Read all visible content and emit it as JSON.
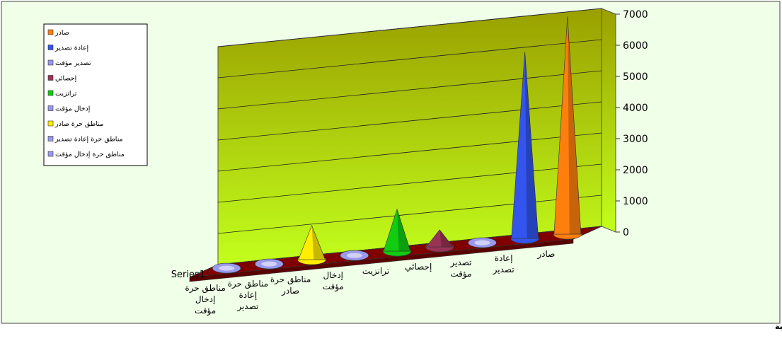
{
  "chart_data": {
    "type": "bar",
    "bar_shape": "cone",
    "three_d": true,
    "categories": [
      "صادر",
      "إعادة تصدير",
      "تصدير مؤقت",
      "إحصائي",
      "ترانزيت",
      "إدخال مؤقت",
      "مناطق حرة صادر",
      "مناطق حرة إعادة تصدير",
      "مناطق حرة إدخال مؤقت"
    ],
    "category_label_lines": [
      [
        "صادر"
      ],
      [
        "إعادة",
        "تصدير"
      ],
      [
        "تصدير",
        "مؤقت"
      ],
      [
        "إحصائي"
      ],
      [
        "ترانزيت"
      ],
      [
        "إدخال",
        "مؤقت"
      ],
      [
        "مناطق حرة",
        "صادر"
      ],
      [
        "مناطق حرة",
        "إعادة",
        "تصدير"
      ],
      [
        "مناطق حرة",
        "إدخال",
        "مؤقت"
      ]
    ],
    "series": [
      {
        "name": "Series1",
        "values": [
          7000,
          6000,
          100,
          550,
          1350,
          100,
          1100,
          100,
          100
        ]
      }
    ],
    "legend": {
      "placement": "top-left",
      "entries": [
        "صادر",
        "إعادة تصدير",
        "تصدير مؤقت",
        "إحصائي",
        "ترانزيت",
        "إدخال مؤقت",
        "مناطق حرة صادر",
        "مناطق حرة إعادة تصدير",
        "مناطق حرة إدخال مؤقت"
      ]
    },
    "colors": [
      "#ff7f0e",
      "#3355ee",
      "#9999ee",
      "#993355",
      "#11cc11",
      "#9999ee",
      "#ffee00",
      "#9999ee",
      "#9999ee"
    ],
    "ylim": [
      0,
      7000
    ],
    "yticks": [
      0,
      1000,
      2000,
      3000,
      4000,
      5000,
      6000,
      7000
    ],
    "grid": true,
    "caption": "الموانئ الشمالية",
    "background_top_color": "#9aa000",
    "background_bottom_color": "#c2ff1c",
    "chart_area_color": "#f0ffe8",
    "floor_color": "#800000"
  }
}
